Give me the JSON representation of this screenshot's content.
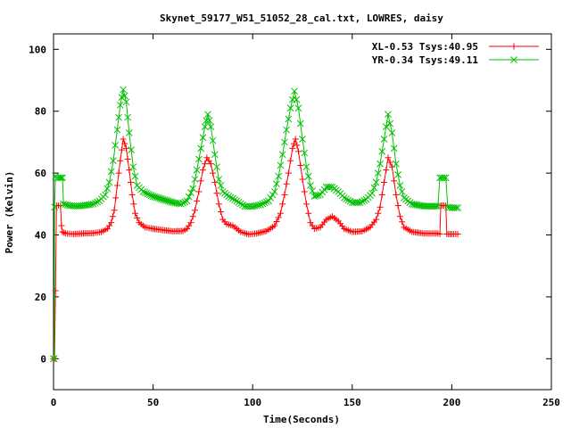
{
  "chart_data": {
    "type": "line",
    "title": "Skynet_59177_W51_51052_28_cal.txt, LOWRES, daisy",
    "xlabel": "Time(Seconds)",
    "ylabel": "Power (Kelvin)",
    "xlim": [
      0,
      250
    ],
    "ylim": [
      -10,
      105
    ],
    "xticks": [
      0,
      50,
      100,
      150,
      200,
      250
    ],
    "yticks": [
      0,
      20,
      40,
      60,
      80,
      100
    ],
    "grid": false,
    "legend_position": "top-right",
    "series": [
      {
        "name": "XL-0.53 Tsys:40.95",
        "color": "#ff0000",
        "marker": "plus",
        "points": [
          [
            0,
            0
          ],
          [
            0.5,
            0
          ],
          [
            1,
            22
          ],
          [
            1.5,
            49.5
          ],
          [
            2.5,
            49.5
          ],
          [
            3.5,
            49.5
          ],
          [
            4,
            43
          ],
          [
            4.5,
            41
          ],
          [
            6,
            40.5
          ],
          [
            10,
            40.3
          ],
          [
            15,
            40.5
          ],
          [
            20,
            40.6
          ],
          [
            24,
            41
          ],
          [
            27,
            42
          ],
          [
            29,
            44
          ],
          [
            30.5,
            48
          ],
          [
            32,
            56
          ],
          [
            33.5,
            64
          ],
          [
            35,
            71
          ],
          [
            36.5,
            68
          ],
          [
            38,
            61
          ],
          [
            39.5,
            53
          ],
          [
            41,
            47
          ],
          [
            43,
            44
          ],
          [
            46,
            42.5
          ],
          [
            50,
            42
          ],
          [
            55,
            41.6
          ],
          [
            60,
            41.2
          ],
          [
            65,
            41.3
          ],
          [
            67,
            42
          ],
          [
            69,
            44
          ],
          [
            71,
            48
          ],
          [
            73,
            54
          ],
          [
            75,
            61
          ],
          [
            77,
            65
          ],
          [
            79,
            63
          ],
          [
            81,
            57
          ],
          [
            83,
            50
          ],
          [
            85,
            45
          ],
          [
            87,
            43.5
          ],
          [
            90,
            43
          ],
          [
            94,
            41
          ],
          [
            98,
            40.2
          ],
          [
            102,
            40.5
          ],
          [
            107,
            41.3
          ],
          [
            111,
            43
          ],
          [
            114,
            47
          ],
          [
            116,
            53
          ],
          [
            118,
            60
          ],
          [
            120,
            68
          ],
          [
            121.5,
            71
          ],
          [
            123,
            67
          ],
          [
            125,
            58
          ],
          [
            127,
            50
          ],
          [
            129,
            44
          ],
          [
            131,
            42
          ],
          [
            134,
            42.5
          ],
          [
            137,
            45
          ],
          [
            140,
            46
          ],
          [
            143,
            44.5
          ],
          [
            146,
            42
          ],
          [
            150,
            41
          ],
          [
            155,
            41.2
          ],
          [
            159,
            42.5
          ],
          [
            162,
            45
          ],
          [
            164,
            49
          ],
          [
            166,
            57
          ],
          [
            168,
            65
          ],
          [
            170,
            62
          ],
          [
            172,
            53
          ],
          [
            174,
            46
          ],
          [
            176,
            42.5
          ],
          [
            180,
            41
          ],
          [
            186,
            40.5
          ],
          [
            193,
            40.5
          ],
          [
            194,
            40.3
          ],
          [
            194.5,
            49.5
          ],
          [
            196,
            49.5
          ],
          [
            197,
            49.5
          ],
          [
            197.5,
            40.3
          ],
          [
            200,
            40.3
          ],
          [
            203,
            40.3
          ]
        ]
      },
      {
        "name": "YR-0.34 Tsys:49.11",
        "color": "#00c000",
        "marker": "cross",
        "points": [
          [
            0,
            0
          ],
          [
            0.3,
            0
          ],
          [
            0.5,
            49
          ],
          [
            1,
            59
          ],
          [
            2,
            58.5
          ],
          [
            3,
            58.5
          ],
          [
            4.5,
            58.5
          ],
          [
            5,
            50
          ],
          [
            8,
            49.5
          ],
          [
            12,
            49.3
          ],
          [
            16,
            49.6
          ],
          [
            20,
            50
          ],
          [
            23,
            51
          ],
          [
            26,
            53
          ],
          [
            28,
            57
          ],
          [
            30,
            64
          ],
          [
            32,
            74
          ],
          [
            33.5,
            82
          ],
          [
            35,
            87
          ],
          [
            36.5,
            83
          ],
          [
            38,
            73
          ],
          [
            40,
            62
          ],
          [
            42,
            56
          ],
          [
            45,
            54
          ],
          [
            50,
            52.5
          ],
          [
            55,
            51.5
          ],
          [
            60,
            50.5
          ],
          [
            64,
            50
          ],
          [
            67,
            51
          ],
          [
            70,
            55
          ],
          [
            72,
            61
          ],
          [
            74,
            68
          ],
          [
            76,
            75
          ],
          [
            77.5,
            79
          ],
          [
            79,
            75
          ],
          [
            81,
            66
          ],
          [
            83,
            58
          ],
          [
            85,
            54
          ],
          [
            88,
            52.5
          ],
          [
            92,
            51
          ],
          [
            96,
            49.3
          ],
          [
            100,
            49.2
          ],
          [
            104,
            49.8
          ],
          [
            108,
            51
          ],
          [
            111,
            54
          ],
          [
            113,
            59
          ],
          [
            115,
            66
          ],
          [
            117,
            74
          ],
          [
            119,
            81
          ],
          [
            121,
            86.5
          ],
          [
            123,
            81
          ],
          [
            125,
            71
          ],
          [
            127,
            62
          ],
          [
            129,
            56
          ],
          [
            131,
            52.5
          ],
          [
            134,
            53
          ],
          [
            137,
            55.5
          ],
          [
            140,
            55.5
          ],
          [
            143,
            54
          ],
          [
            146,
            52
          ],
          [
            150,
            50.5
          ],
          [
            154,
            50.5
          ],
          [
            157,
            51.5
          ],
          [
            160,
            53.5
          ],
          [
            162,
            57
          ],
          [
            164,
            63
          ],
          [
            166,
            71
          ],
          [
            168,
            79
          ],
          [
            170,
            73
          ],
          [
            172,
            63
          ],
          [
            174,
            56
          ],
          [
            176,
            52
          ],
          [
            180,
            50
          ],
          [
            186,
            49.3
          ],
          [
            193,
            49.3
          ],
          [
            194,
            58.5
          ],
          [
            196,
            58.5
          ],
          [
            197,
            58.5
          ],
          [
            198,
            49
          ],
          [
            200,
            48.8
          ],
          [
            203,
            48.8
          ]
        ]
      }
    ]
  }
}
